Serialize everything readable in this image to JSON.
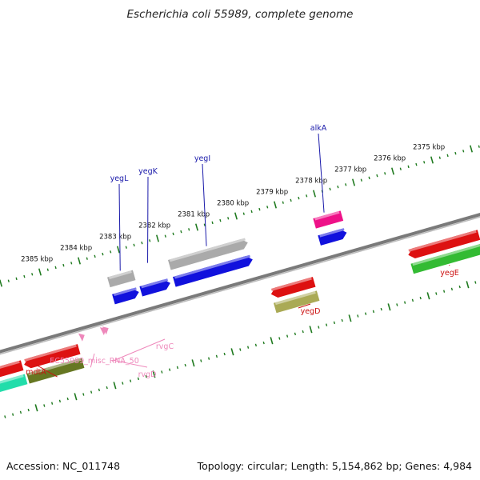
{
  "title": "Escherichia coli 55989, complete genome",
  "footer": {
    "accession": "Accession: NC_011748",
    "summary": "Topology: circular; Length: 5,154,862 bp; Genes: 4,984"
  },
  "colors": {
    "axis_tick": "#1f7a1f",
    "backbone": "#7a7a7a",
    "upper_label": "#1a1aaa",
    "lower_label": "#cc1111",
    "rna_label": "#ee88bb"
  },
  "ticks": [
    {
      "label": "2375 kbp",
      "kbp": 2375
    },
    {
      "label": "2376 kbp",
      "kbp": 2376
    },
    {
      "label": "2377 kbp",
      "kbp": 2377
    },
    {
      "label": "2378 kbp",
      "kbp": 2378
    },
    {
      "label": "2379 kbp",
      "kbp": 2379
    },
    {
      "label": "2380 kbp",
      "kbp": 2380
    },
    {
      "label": "2381 kbp",
      "kbp": 2381
    },
    {
      "label": "2382 kbp",
      "kbp": 2382
    },
    {
      "label": "2383 kbp",
      "kbp": 2383
    },
    {
      "label": "2384 kbp",
      "kbp": 2384
    },
    {
      "label": "2385 kbp",
      "kbp": 2385
    }
  ],
  "features": [
    {
      "name": "yegE",
      "track": "lower-strand-1",
      "color": "#dd1111",
      "start_kbp": 2374.4,
      "end_kbp": 2376.2,
      "dir": "rev"
    },
    {
      "name": "yegE-cds",
      "track": "lower-strand-2",
      "color": "#33bb33",
      "start_kbp": 2374.4,
      "end_kbp": 2376.2,
      "dir": "none"
    },
    {
      "name": "alkA",
      "track": "upper-strand-2",
      "color": "#ee1188",
      "start_kbp": 2377.5,
      "end_kbp": 2378.2,
      "dir": "none"
    },
    {
      "name": "alkA-cds",
      "track": "upper-strand-1",
      "color": "#1111dd",
      "start_kbp": 2377.5,
      "end_kbp": 2378.2,
      "dir": "fwd"
    },
    {
      "name": "yegD",
      "track": "lower-strand-1",
      "color": "#dd1111",
      "start_kbp": 2378.6,
      "end_kbp": 2379.7,
      "dir": "rev"
    },
    {
      "name": "yegD-cds",
      "track": "lower-strand-2",
      "color": "#aaaa55",
      "start_kbp": 2378.6,
      "end_kbp": 2379.7,
      "dir": "none"
    },
    {
      "name": "yegI",
      "track": "upper-strand-2",
      "color": "#aaaaaa",
      "start_kbp": 2379.9,
      "end_kbp": 2381.9,
      "dir": "fwd"
    },
    {
      "name": "yegI-cds",
      "track": "upper-strand-1",
      "color": "#1111dd",
      "start_kbp": 2379.9,
      "end_kbp": 2381.9,
      "dir": "fwd"
    },
    {
      "name": "yegK",
      "track": "upper-strand-1",
      "color": "#1111dd",
      "start_kbp": 2382.0,
      "end_kbp": 2382.75,
      "dir": "fwd"
    },
    {
      "name": "yegL",
      "track": "upper-strand-2",
      "color": "#aaaaaa",
      "start_kbp": 2382.8,
      "end_kbp": 2383.45,
      "dir": "none"
    },
    {
      "name": "yegL-cds",
      "track": "upper-strand-1",
      "color": "#1111dd",
      "start_kbp": 2382.8,
      "end_kbp": 2383.45,
      "dir": "fwd"
    },
    {
      "name": "rvgC",
      "track": "rna",
      "color": "#ee88bb",
      "start_kbp": 2383.85,
      "end_kbp": 2383.95,
      "dir": "rev"
    },
    {
      "name": "rvgD",
      "track": "rna",
      "color": "#ee88bb",
      "start_kbp": 2383.8,
      "end_kbp": 2383.88,
      "dir": "rev"
    },
    {
      "name": "EC55989_misc_RNA_50",
      "track": "rna",
      "color": "#ee88bb",
      "start_kbp": 2384.4,
      "end_kbp": 2384.5,
      "dir": "rev"
    },
    {
      "name": "mdtA",
      "track": "lower-strand-1",
      "color": "#dd1111",
      "start_kbp": 2384.6,
      "end_kbp": 2386.0,
      "dir": "rev"
    },
    {
      "name": "mdtA-b",
      "track": "lower-strand-1",
      "color": "#dd1111",
      "start_kbp": 2386.05,
      "end_kbp": 2386.8,
      "dir": "none"
    },
    {
      "name": "mdtA-cds",
      "track": "lower-strand-2",
      "color": "#667722",
      "start_kbp": 2384.6,
      "end_kbp": 2386.0,
      "dir": "none"
    },
    {
      "name": "mdtA-cds-b",
      "track": "lower-strand-2",
      "color": "#22ddaa",
      "start_kbp": 2386.05,
      "end_kbp": 2386.8,
      "dir": "none"
    }
  ],
  "labels": [
    {
      "text": "alkA",
      "color_key": "upper_label",
      "kbp": 2377.9,
      "side": "upper"
    },
    {
      "text": "yegI",
      "color_key": "upper_label",
      "kbp": 2380.9,
      "side": "upper"
    },
    {
      "text": "yegK",
      "color_key": "upper_label",
      "kbp": 2382.4,
      "side": "upper"
    },
    {
      "text": "yegL",
      "color_key": "upper_label",
      "kbp": 2383.1,
      "side": "upper"
    },
    {
      "text": "yegE",
      "color_key": "lower_label",
      "kbp": 2375.3,
      "side": "lower"
    },
    {
      "text": "yegD",
      "color_key": "lower_label",
      "kbp": 2379.15,
      "side": "lower"
    },
    {
      "text": "rvgC",
      "color_key": "rna_label",
      "kbp": 2383.9,
      "side": "lower"
    },
    {
      "text": "rvgD",
      "color_key": "rna_label",
      "kbp": 2383.84,
      "side": "lower"
    },
    {
      "text": "EC55989_misc_RNA_50",
      "color_key": "rna_label",
      "kbp": 2384.45,
      "side": "lower"
    },
    {
      "text": "mdtA",
      "color_key": "lower_label",
      "kbp": 2385.3,
      "side": "lower"
    }
  ]
}
